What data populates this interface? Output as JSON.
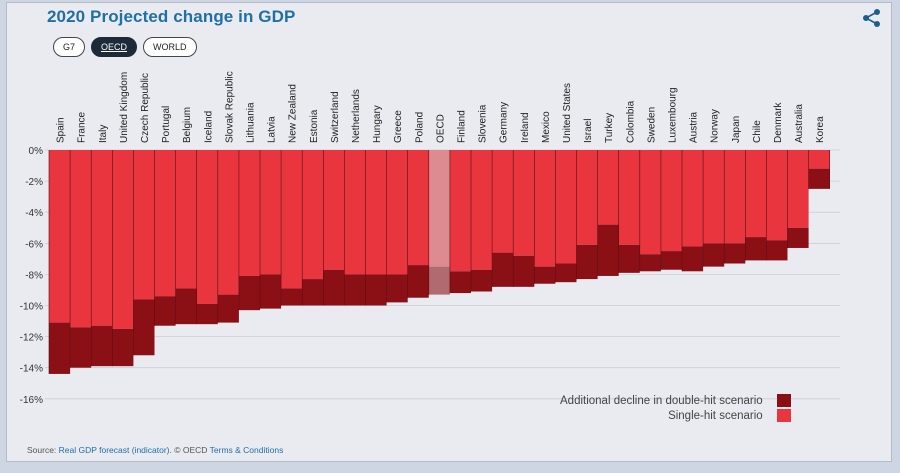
{
  "title": "2020 Projected change in GDP",
  "tabs": [
    {
      "label": "G7",
      "active": false
    },
    {
      "label": "OECD",
      "active": true
    },
    {
      "label": "WORLD",
      "active": false
    }
  ],
  "source": {
    "prefix": "Source: ",
    "link": "Real GDP forecast (indicator)",
    "middle": ". © OECD ",
    "terms": "Terms & Conditions"
  },
  "colors": {
    "single": "#e8353e",
    "double": "#8b1016",
    "highlight_single": "#dd8a90",
    "highlight_double": "#b06b70"
  },
  "chart_data": {
    "type": "bar",
    "stacked": true,
    "highlight": "OECD",
    "categories": [
      "Spain",
      "France",
      "Italy",
      "United Kingdom",
      "Czech Republic",
      "Portugal",
      "Belgium",
      "Iceland",
      "Slovak Republic",
      "Lithuania",
      "Latvia",
      "New Zealand",
      "Estonia",
      "Switzerland",
      "Netherlands",
      "Hungary",
      "Greece",
      "Poland",
      "OECD",
      "Finland",
      "Slovenia",
      "Germany",
      "Ireland",
      "Mexico",
      "United States",
      "Israel",
      "Turkey",
      "Colombia",
      "Sweden",
      "Luxembourg",
      "Austria",
      "Norway",
      "Japan",
      "Chile",
      "Denmark",
      "Australia",
      "Korea"
    ],
    "series": [
      {
        "name": "Single-hit scenario",
        "values": [
          -11.1,
          -11.4,
          -11.3,
          -11.5,
          -9.6,
          -9.4,
          -8.9,
          -9.9,
          -9.3,
          -8.1,
          -8.0,
          -8.9,
          -8.3,
          -7.7,
          -8.0,
          -8.0,
          -8.0,
          -7.4,
          -7.5,
          -7.8,
          -7.7,
          -6.6,
          -6.8,
          -7.5,
          -7.3,
          -6.1,
          -4.8,
          -6.1,
          -6.7,
          -6.5,
          -6.2,
          -6.0,
          -6.0,
          -5.6,
          -5.8,
          -5.0,
          -1.2
        ]
      },
      {
        "name": "Additional decline in double-hit scenario",
        "values": [
          -3.3,
          -2.6,
          -2.6,
          -2.4,
          -3.6,
          -1.9,
          -2.3,
          -1.3,
          -1.8,
          -2.2,
          -2.2,
          -1.1,
          -1.7,
          -2.3,
          -2.0,
          -2.0,
          -1.8,
          -2.1,
          -1.8,
          -1.4,
          -1.4,
          -2.2,
          -2.0,
          -1.1,
          -1.2,
          -2.2,
          -3.3,
          -1.8,
          -1.1,
          -1.2,
          -1.6,
          -1.5,
          -1.3,
          -1.5,
          -1.3,
          -1.3,
          -1.3
        ]
      }
    ],
    "ylim": [
      -16,
      0
    ],
    "yticks": [
      0,
      -2,
      -4,
      -6,
      -8,
      -10,
      -12,
      -14,
      -16
    ],
    "ytick_labels": [
      "0%",
      "-2%",
      "-4%",
      "-6%",
      "-8%",
      "-10%",
      "-12%",
      "-14%",
      "-16%"
    ],
    "legend": [
      "Additional decline in double-hit scenario",
      "Single-hit scenario"
    ],
    "legend_position": "bottom-right"
  }
}
